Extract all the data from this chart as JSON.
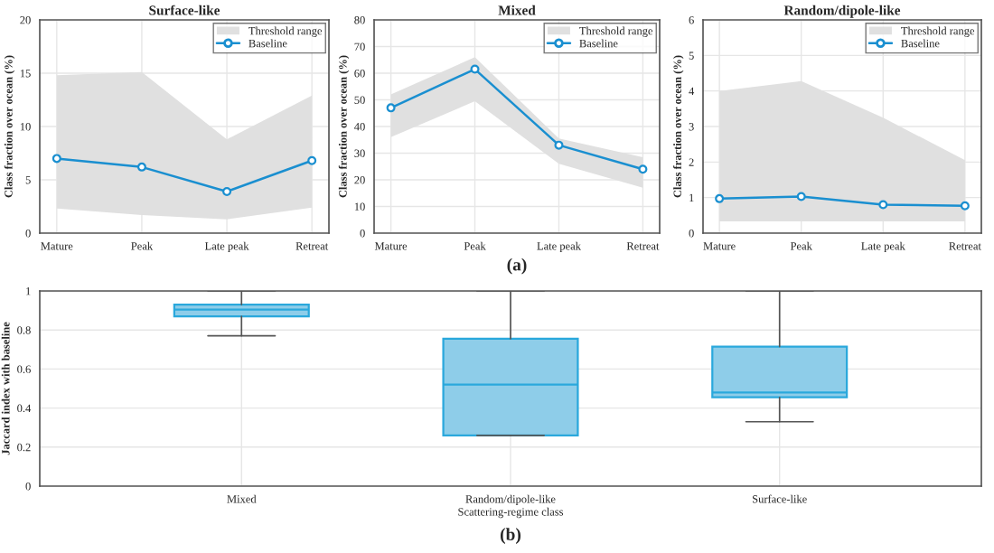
{
  "chart_data": [
    {
      "type": "line",
      "title": "Surface-like",
      "ylabel": "Class fraction over ocean (%)",
      "categories": [
        "Mature",
        "Peak",
        "Late peak",
        "Retreat"
      ],
      "ylim": [
        0,
        20
      ],
      "yticks": [
        0,
        5,
        10,
        15,
        20
      ],
      "grid": true,
      "legend": "top right",
      "line_style": "solid",
      "series": [
        {
          "name": "Threshold range",
          "type": "area",
          "color": "#e0e0e0",
          "values": [
            null,
            null,
            null,
            null
          ],
          "lower": [
            2.3,
            1.7,
            1.3,
            2.4
          ],
          "upper": [
            14.8,
            15.1,
            8.8,
            12.9
          ]
        },
        {
          "name": "Baseline",
          "type": "line",
          "color": "#1a8fd0",
          "marker": "circle",
          "values": [
            7.0,
            6.2,
            3.9,
            6.8
          ]
        }
      ]
    },
    {
      "type": "line",
      "title": "Mixed",
      "ylabel": "Class fraction over ocean (%)",
      "categories": [
        "Mature",
        "Peak",
        "Late peak",
        "Retreat"
      ],
      "ylim": [
        0,
        80
      ],
      "yticks": [
        0,
        10,
        20,
        30,
        40,
        50,
        60,
        70,
        80
      ],
      "grid": true,
      "legend": "top right",
      "line_style": "solid",
      "annotations": [
        "(a)"
      ],
      "series": [
        {
          "name": "Threshold range",
          "type": "area",
          "color": "#e0e0e0",
          "values": [
            null,
            null,
            null,
            null
          ],
          "lower": [
            36,
            49.5,
            26,
            17
          ],
          "upper": [
            52,
            66,
            35.5,
            28.5
          ]
        },
        {
          "name": "Baseline",
          "type": "line",
          "color": "#1a8fd0",
          "marker": "circle",
          "values": [
            47,
            61.5,
            33,
            24
          ]
        }
      ]
    },
    {
      "type": "line",
      "title": "Random/dipole-like",
      "ylabel": "Class fraction over ocean (%)",
      "categories": [
        "Mature",
        "Peak",
        "Late peak",
        "Retreat"
      ],
      "ylim": [
        0,
        6
      ],
      "yticks": [
        0,
        1,
        2,
        3,
        4,
        5,
        6
      ],
      "grid": true,
      "legend": "top right",
      "line_style": "solid",
      "series": [
        {
          "name": "Threshold range",
          "type": "area",
          "color": "#e0e0e0",
          "values": [
            null,
            null,
            null,
            null
          ],
          "lower": [
            0.33,
            0.33,
            0.33,
            0.33
          ],
          "upper": [
            4.0,
            4.28,
            3.25,
            2.05
          ]
        },
        {
          "name": "Baseline",
          "type": "line",
          "color": "#1a8fd0",
          "marker": "circle",
          "values": [
            0.97,
            1.03,
            0.8,
            0.77
          ]
        }
      ]
    },
    {
      "type": "box",
      "xlabel": "Scattering-regime class",
      "ylabel": "Jaccard index with baseline",
      "categories": [
        "Mixed",
        "Random/dipole-like",
        "Surface-like"
      ],
      "ylim": [
        0,
        1
      ],
      "yticks": [
        0,
        0.2,
        0.4,
        0.6,
        0.8,
        1
      ],
      "grid": true,
      "annotations": [
        "(b)"
      ],
      "series": [
        {
          "color": "#8ecde9",
          "boxes": [
            {
              "low": 0.77,
              "q1": 0.87,
              "median": 0.905,
              "q3": 0.93,
              "high": 1.0
            },
            {
              "low": 0.26,
              "q1": 0.26,
              "median": 0.52,
              "q3": 0.755,
              "high": 1.0
            },
            {
              "low": 0.33,
              "q1": 0.455,
              "median": 0.48,
              "q3": 0.715,
              "high": 1.0
            }
          ]
        }
      ]
    }
  ]
}
